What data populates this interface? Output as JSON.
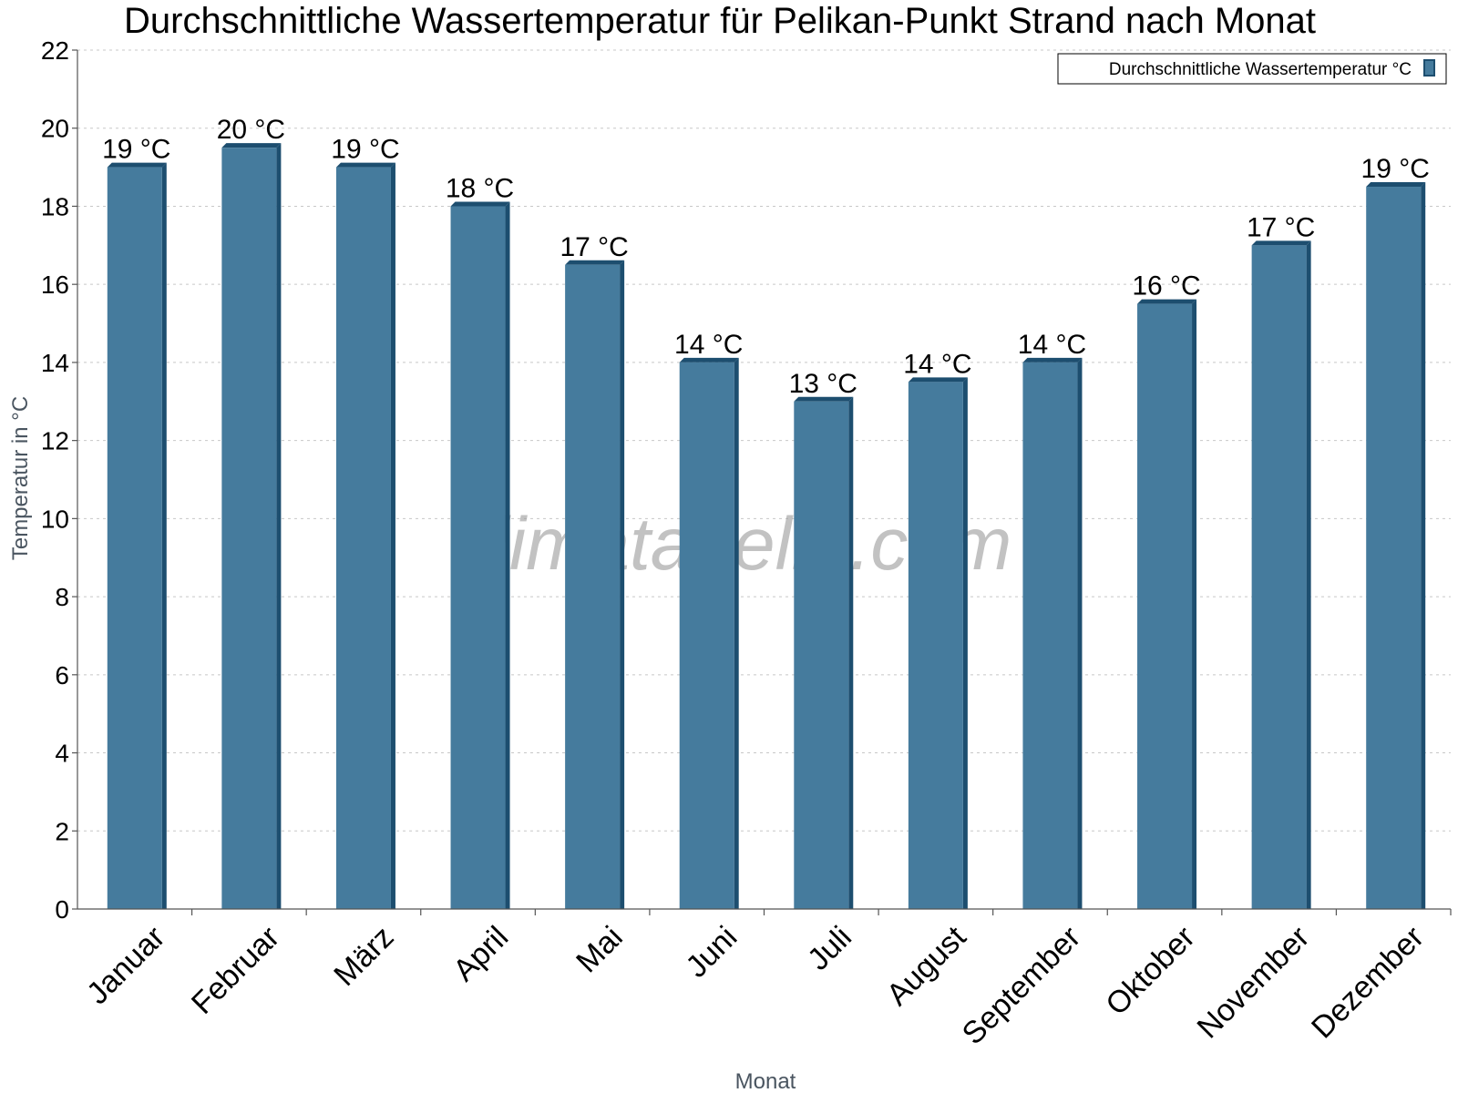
{
  "chart_data": {
    "type": "bar",
    "title": "Durchschnittliche Wassertemperatur für Pelikan-Punkt Strand nach Monat",
    "xlabel": "Monat",
    "ylabel": "Temperatur in °C",
    "ylim": [
      0,
      22
    ],
    "yticks": [
      0,
      2,
      4,
      6,
      8,
      10,
      12,
      14,
      16,
      18,
      20,
      22
    ],
    "grid": true,
    "legend_position": "top-right",
    "categories": [
      "Januar",
      "Februar",
      "März",
      "April",
      "Mai",
      "Juni",
      "Juli",
      "August",
      "September",
      "Oktober",
      "November",
      "Dezember"
    ],
    "series": [
      {
        "name": "Durchschnittliche Wassertemperatur °C",
        "values": [
          19,
          19.5,
          19,
          18,
          16.5,
          14,
          13,
          13.5,
          14,
          15.5,
          17,
          18.5
        ],
        "labels": [
          "19 °C",
          "20 °C",
          "19 °C",
          "18 °C",
          "17 °C",
          "14 °C",
          "13 °C",
          "14 °C",
          "14 °C",
          "16 °C",
          "17 °C",
          "19 °C"
        ],
        "color": "#457b9d",
        "edge_color": "#1d4e6f"
      }
    ],
    "watermark": "klimatabelle.com"
  }
}
